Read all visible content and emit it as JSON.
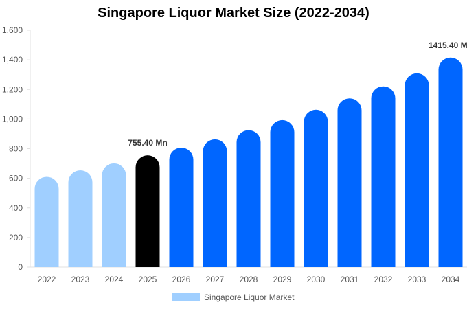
{
  "chart_data": {
    "type": "bar",
    "title": "Singapore Liquor Market Size (2022-2034)",
    "xlabel": "",
    "ylabel": "",
    "categories": [
      "2022",
      "2023",
      "2024",
      "2025",
      "2026",
      "2027",
      "2028",
      "2029",
      "2030",
      "2031",
      "2032",
      "2033",
      "2034"
    ],
    "series": [
      {
        "name": "Singapore Liquor Market",
        "values": [
          610,
          654,
          701,
          755.4,
          807,
          863,
          925,
          993,
          1063,
          1140,
          1221,
          1309,
          1415.4
        ]
      }
    ],
    "ylim": [
      0,
      1600
    ],
    "yticks": [
      "0",
      "200",
      "400",
      "600",
      "800",
      "1,000",
      "1,200",
      "1,400",
      "1,600"
    ],
    "data_labels": [
      {
        "category": "2025",
        "text": "755.40 Mn"
      },
      {
        "category": "2034",
        "text": "1415.40 Mn"
      }
    ],
    "colors": {
      "historical": "#a0cfff",
      "current": "#000000",
      "forecast": "#0066ff"
    },
    "legend": {
      "position": "bottom",
      "label": "Singapore Liquor Market"
    },
    "grid": false
  }
}
